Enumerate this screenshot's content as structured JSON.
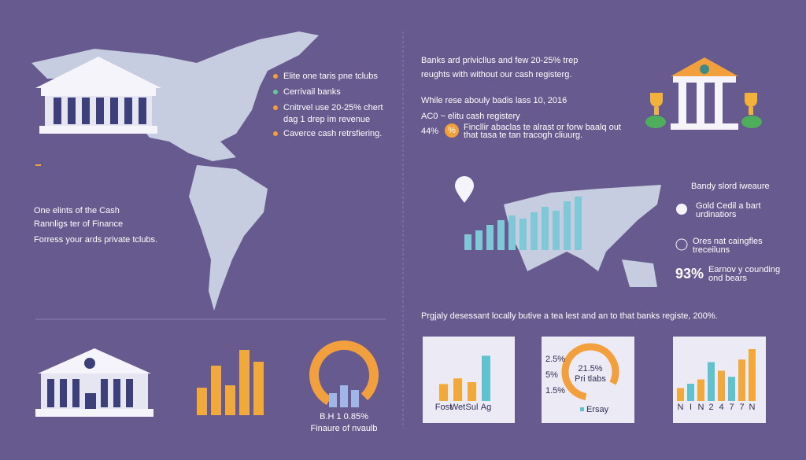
{
  "left": {
    "bullets": [
      "Elite one taris pne tclubs",
      "Cerrivail banks",
      "Cnitrvel use 20-25% chert",
      "dag 1 drep im revenue",
      "Caverce cash retrsfiering."
    ],
    "heading": [
      "One elints of the Cash",
      "Rannligs ter of Finance"
    ],
    "subtext": "Forress your ards private tclubs."
  },
  "left_bottom": {
    "bars": [
      35,
      63,
      38,
      83,
      68
    ],
    "donut_bars": [
      18,
      28,
      22
    ],
    "donut_label": "B.H 1 0.85%",
    "donut_caption": "Finaure of nvaulb"
  },
  "right_top": {
    "title": [
      "Banks ard privicllus and few 20-25% trep",
      "reughts with without our cash registerg."
    ],
    "lines": [
      "While rese abouly badis lass 10, 2016",
      "AC0 ~ elitu cash registery"
    ],
    "stat": "44%",
    "badge": "%",
    "note": [
      "Fincllir abaclas te alrast or forw baalq out",
      "that tasa te tan tracogh cliuurg."
    ]
  },
  "right_mid": {
    "bars": [
      20,
      25,
      32,
      38,
      44,
      40,
      48,
      55,
      50,
      62,
      68
    ],
    "items": [
      "Bandy slord iweaure",
      "Gold Cedil a bart",
      "urdinatiors",
      "Ores nat caingfles",
      "treceiluns"
    ],
    "stat": "93%",
    "stat_note": [
      "Earnov y counding",
      "ond bears"
    ]
  },
  "right_bottom": {
    "caption": "Prgjaly desessant locally butive a tea lest and an to that banks registe, 200%.",
    "panel1": {
      "categories": [
        "Fost",
        "Wet",
        "Sul",
        "Ag"
      ],
      "values": [
        18,
        24,
        20,
        48
      ]
    },
    "panel2": {
      "value": "21.5%",
      "sub": "Pri tlabs",
      "ticks": [
        "2.5%",
        "5%",
        "1.5%"
      ],
      "legend": "Ersay"
    },
    "panel3": {
      "categories": [
        "N",
        "I",
        "N",
        "2",
        "4",
        "7",
        "7",
        "N"
      ],
      "values": [
        15,
        20,
        25,
        45,
        35,
        28,
        48,
        60
      ]
    }
  }
}
